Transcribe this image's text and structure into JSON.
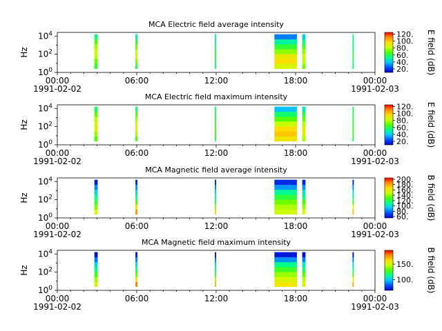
{
  "colorscale": [
    "#0000c8",
    "#0050ff",
    "#00c8ff",
    "#00ff8c",
    "#50ff00",
    "#c8ff00",
    "#ffdc00",
    "#ff8c00",
    "#ff0000"
  ],
  "chart_data": [
    {
      "type": "heatmap",
      "title": "MCA  Electric field average intensity",
      "ylabel": "Hz",
      "colorbar_label": "E field (dB)",
      "colorbar_ticks": [
        "20.",
        "40.",
        "60.",
        "80.",
        "100.",
        "120."
      ],
      "clim": [
        10,
        125
      ],
      "y_tick_labels": [
        "10^0",
        "10^2",
        "10^4"
      ],
      "ylim_log10_hz": [
        0,
        4.4
      ],
      "x_tick_labels": [
        "00:00",
        "06:00",
        "12:00",
        "18:00",
        "00:00"
      ],
      "x_date_labels": [
        "1991-02-02",
        "1991-02-03"
      ],
      "xlim_hours": [
        0,
        24
      ],
      "data_intervals_hours": [
        [
          2.8,
          3.05
        ],
        [
          5.9,
          6.05
        ],
        [
          11.9,
          12.0
        ],
        [
          16.4,
          18.1
        ],
        [
          18.5,
          18.75
        ],
        [
          22.3,
          22.4
        ]
      ],
      "freq_range_log10_hz": [
        0.4,
        4.2
      ],
      "intensity_db": [
        [
          62,
          70,
          80,
          82,
          76,
          66,
          54
        ],
        [
          60,
          72,
          85,
          80,
          70,
          62,
          50
        ],
        [
          55,
          60,
          62,
          60,
          58,
          55,
          52
        ],
        [
          85,
          95,
          90,
          75,
          62,
          50,
          30
        ],
        [
          72,
          80,
          84,
          75,
          64,
          55,
          42
        ],
        [
          55,
          58,
          60,
          58,
          56,
          55,
          54
        ]
      ]
    },
    {
      "type": "heatmap",
      "title": "MCA  Electric field maximum intensity",
      "ylabel": "Hz",
      "colorbar_label": "E field (dB)",
      "colorbar_ticks": [
        "20.",
        "40.",
        "60.",
        "80.",
        "100.",
        "120."
      ],
      "clim": [
        10,
        125
      ],
      "y_tick_labels": [
        "10^0",
        "10^2",
        "10^4"
      ],
      "ylim_log10_hz": [
        0,
        4.4
      ],
      "x_tick_labels": [
        "00:00",
        "06:00",
        "12:00",
        "18:00",
        "00:00"
      ],
      "x_date_labels": [
        "1991-02-02",
        "1991-02-03"
      ],
      "xlim_hours": [
        0,
        24
      ],
      "data_intervals_hours": [
        [
          2.8,
          3.05
        ],
        [
          5.9,
          6.05
        ],
        [
          11.9,
          12.0
        ],
        [
          16.4,
          18.1
        ],
        [
          18.5,
          18.75
        ],
        [
          22.3,
          22.4
        ]
      ],
      "freq_range_log10_hz": [
        0.4,
        4.2
      ],
      "intensity_db": [
        [
          68,
          76,
          86,
          88,
          80,
          70,
          58
        ],
        [
          66,
          78,
          90,
          86,
          76,
          66,
          55
        ],
        [
          60,
          64,
          66,
          64,
          62,
          60,
          58
        ],
        [
          92,
          100,
          96,
          82,
          68,
          56,
          38
        ],
        [
          78,
          86,
          90,
          80,
          70,
          60,
          48
        ],
        [
          60,
          62,
          64,
          62,
          60,
          58,
          58
        ]
      ]
    },
    {
      "type": "heatmap",
      "title": "MCA  Magnetic field average intensity",
      "ylabel": "Hz",
      "colorbar_label": "B field (dB)",
      "colorbar_ticks": [
        "60.",
        "80.",
        "100.",
        "120.",
        "140.",
        "160.",
        "180.",
        "200."
      ],
      "clim": [
        55,
        205
      ],
      "y_tick_labels": [
        "10^0",
        "10^2",
        "10^4"
      ],
      "ylim_log10_hz": [
        0,
        4.4
      ],
      "x_tick_labels": [
        "00:00",
        "06:00",
        "12:00",
        "18:00",
        "00:00"
      ],
      "x_date_labels": [
        "1991-02-02",
        "1991-02-03"
      ],
      "xlim_hours": [
        0,
        24
      ],
      "data_intervals_hours": [
        [
          2.8,
          3.05
        ],
        [
          5.9,
          6.05
        ],
        [
          11.9,
          12.0
        ],
        [
          16.4,
          18.1
        ],
        [
          18.5,
          18.75
        ],
        [
          22.3,
          22.4
        ]
      ],
      "freq_range_log10_hz": [
        0.4,
        4.2
      ],
      "intensity_db": [
        [
          150,
          138,
          122,
          112,
          100,
          82,
          62
        ],
        [
          185,
          160,
          130,
          112,
          100,
          85,
          65
        ],
        [
          170,
          140,
          120,
          110,
          98,
          82,
          62
        ],
        [
          150,
          145,
          135,
          122,
          110,
          85,
          65
        ],
        [
          150,
          140,
          128,
          115,
          104,
          84,
          64
        ],
        [
          175,
          150,
          125,
          110,
          100,
          84,
          64
        ]
      ]
    },
    {
      "type": "heatmap",
      "title": "MCA  Magnetic field maximum intensity",
      "ylabel": "Hz",
      "colorbar_label": "B field (dB)",
      "colorbar_ticks": [
        "100.",
        "150."
      ],
      "clim": [
        65,
        195
      ],
      "y_tick_labels": [
        "10^0",
        "10^2",
        "10^4"
      ],
      "ylim_log10_hz": [
        0,
        4.4
      ],
      "x_tick_labels": [
        "00:00",
        "06:00",
        "12:00",
        "18:00",
        "00:00"
      ],
      "x_date_labels": [
        "1991-02-02",
        "1991-02-03"
      ],
      "xlim_hours": [
        0,
        24
      ],
      "data_intervals_hours": [
        [
          2.8,
          3.05
        ],
        [
          5.9,
          6.05
        ],
        [
          11.9,
          12.0
        ],
        [
          16.4,
          18.1
        ],
        [
          18.5,
          18.75
        ],
        [
          22.3,
          22.4
        ]
      ],
      "freq_range_log10_hz": [
        0.4,
        4.2
      ],
      "intensity_db": [
        [
          150,
          140,
          126,
          116,
          104,
          86,
          68
        ],
        [
          180,
          158,
          132,
          116,
          104,
          88,
          70
        ],
        [
          170,
          142,
          124,
          114,
          102,
          86,
          68
        ],
        [
          158,
          150,
          140,
          126,
          114,
          90,
          70
        ],
        [
          154,
          144,
          132,
          118,
          108,
          88,
          68
        ],
        [
          172,
          150,
          128,
          114,
          104,
          88,
          68
        ]
      ]
    }
  ]
}
